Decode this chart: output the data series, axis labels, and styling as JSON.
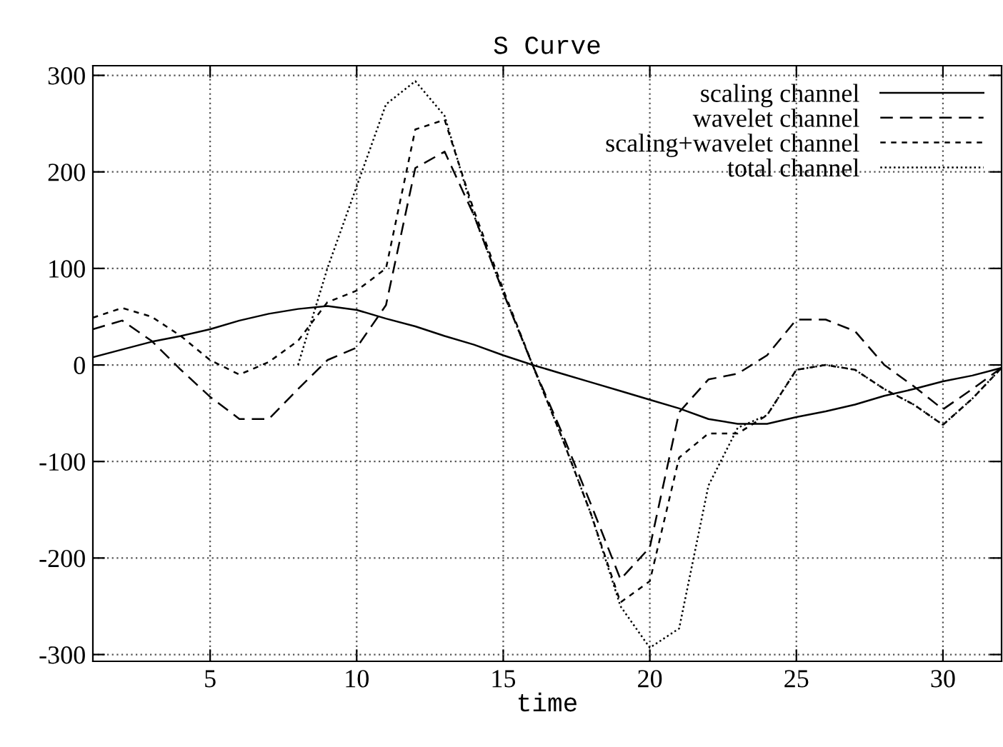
{
  "chart_data": {
    "type": "line",
    "title": "S Curve",
    "xlabel": "time",
    "x": [
      1,
      2,
      3,
      4,
      5,
      6,
      7,
      8,
      9,
      10,
      11,
      12,
      13,
      14,
      15,
      16,
      17,
      18,
      19,
      20,
      21,
      22,
      23,
      24,
      25,
      26,
      27,
      28,
      29,
      30,
      31,
      32
    ],
    "series": [
      {
        "name": "scaling channel",
        "color": "#000000",
        "line_style": "solid",
        "values": [
          8,
          16,
          24,
          30,
          37,
          46,
          53,
          58,
          61,
          57,
          48,
          40,
          30,
          21,
          10,
          0,
          -9,
          -18,
          -27,
          -36,
          -45,
          -56,
          -61,
          -61,
          -54,
          -48,
          -41,
          -32,
          -25,
          -17,
          -11,
          -3
        ]
      },
      {
        "name": "wavelet channel",
        "color": "#000000",
        "line_style": "dashed",
        "values": [
          37,
          46,
          25,
          -5,
          -33,
          -56,
          -56,
          -25,
          5,
          18,
          62,
          204,
          221,
          155,
          75,
          0,
          -70,
          -145,
          -222,
          -189,
          -49,
          -15,
          -9,
          10,
          47,
          47,
          35,
          0,
          -22,
          -46,
          -25,
          -3
        ]
      },
      {
        "name": "scaling+wavelet channel",
        "color": "#000000",
        "line_style": "dashed",
        "values": [
          49,
          59,
          50,
          30,
          5,
          -10,
          3,
          25,
          65,
          77,
          100,
          244,
          254,
          160,
          78,
          0,
          -75,
          -155,
          -246,
          -224,
          -96,
          -71,
          -71,
          -52,
          -5,
          0,
          -5,
          -25,
          -41,
          -62,
          -35,
          -3
        ]
      },
      {
        "name": "total channel",
        "color": "#000000",
        "line_style": "dotted",
        "values": [
          null,
          null,
          null,
          null,
          null,
          null,
          null,
          0,
          100,
          185,
          270,
          294,
          258,
          155,
          75,
          0,
          -75,
          -155,
          -250,
          -293,
          -273,
          -125,
          -65,
          -52,
          -5,
          0,
          -5,
          -25,
          -41,
          -62,
          -35,
          -3
        ]
      }
    ],
    "xlim": [
      1,
      32
    ],
    "ylim": [
      -307,
      310
    ],
    "xticks": [
      5,
      10,
      15,
      20,
      25,
      30
    ],
    "yticks": [
      -300,
      -200,
      -100,
      0,
      100,
      200,
      300
    ],
    "grid": true,
    "legend": "top right"
  }
}
